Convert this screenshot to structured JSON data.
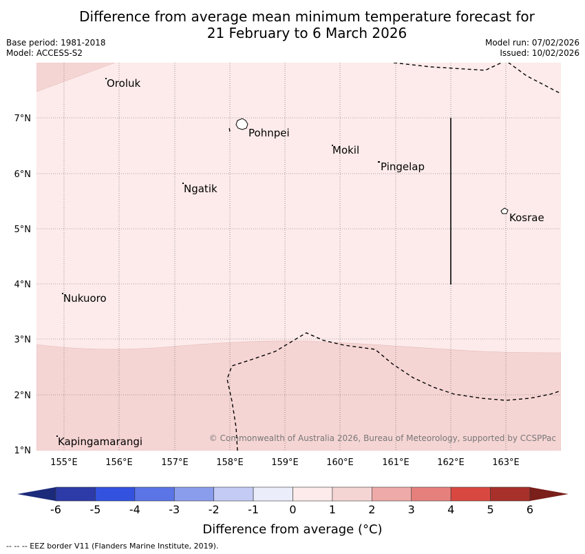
{
  "title_line1": "Difference from average mean minimum temperature forecast for",
  "title_line2": "21 February to 6 March 2026",
  "base_period": "Base period: 1981-2018",
  "model": "Model: ACCESS-S2",
  "model_run": "Model run: 07/02/2026",
  "issued": "Issued: 10/02/2026",
  "lat_labels": [
    "7°N",
    "6°N",
    "5°N",
    "4°N",
    "3°N",
    "2°N",
    "1°N"
  ],
  "lon_labels": [
    "155°E",
    "156°E",
    "157°E",
    "158°E",
    "159°E",
    "160°E",
    "161°E",
    "162°E",
    "163°E"
  ],
  "places": {
    "oroluk": "Oroluk",
    "pohnpei": "Pohnpei",
    "mokil": "Mokil",
    "pingelap": "Pingelap",
    "ngatik": "Ngatik",
    "kosrae": "Kosrae",
    "nukuoro": "Nukuoro",
    "kapingamarangi": "Kapingamarangi"
  },
  "copyright": "© Commonwealth of Australia 2026, Bureau of Meteorology, supported by CCSPPac",
  "colorbar": {
    "ticks": [
      "-6",
      "-5",
      "-4",
      "-3",
      "-2",
      "-1",
      "0",
      "1",
      "2",
      "3",
      "4",
      "5",
      "6"
    ],
    "title": "Difference from average (°C)",
    "colors": [
      "#2c3ba8",
      "#3352e0",
      "#5b74e6",
      "#8a9ded",
      "#c4cbf4",
      "#ebedfb",
      "#fcebea",
      "#f5d5d4",
      "#eeaaa8",
      "#e6807c",
      "#d94840",
      "#a8302a"
    ],
    "under_color": "#1b2a7a",
    "over_color": "#7a1f1a"
  },
  "field_colors": {
    "light": "#fcebea",
    "medium": "#f5d5d4"
  },
  "eez_note": "--  --  -- EEZ border V11 (Flanders Marine Institute, 2019)."
}
